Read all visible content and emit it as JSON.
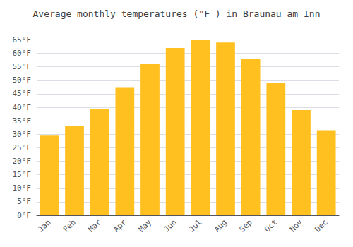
{
  "chart_data": {
    "type": "bar",
    "title": "Average monthly temperatures (°F ) in Braunau am Inn",
    "categories": [
      "Jan",
      "Feb",
      "Mar",
      "Apr",
      "May",
      "Jun",
      "Jul",
      "Aug",
      "Sep",
      "Oct",
      "Nov",
      "Dec"
    ],
    "values": [
      29.5,
      33,
      39.5,
      47.5,
      56,
      62,
      65,
      64,
      58,
      49,
      39,
      31.5
    ],
    "color": "#FFC020",
    "ylim": [
      0,
      68
    ],
    "yticks": [
      {
        "value": 0,
        "label": "0°F"
      },
      {
        "value": 5,
        "label": "5°F"
      },
      {
        "value": 10,
        "label": "10°F"
      },
      {
        "value": 15,
        "label": "15°F"
      },
      {
        "value": 20,
        "label": "20°F"
      },
      {
        "value": 25,
        "label": "25°F"
      },
      {
        "value": 30,
        "label": "30°F"
      },
      {
        "value": 35,
        "label": "35°F"
      },
      {
        "value": 40,
        "label": "40°F"
      },
      {
        "value": 45,
        "label": "45°F"
      },
      {
        "value": 50,
        "label": "50°F"
      },
      {
        "value": 55,
        "label": "55°F"
      },
      {
        "value": 60,
        "label": "60°F"
      },
      {
        "value": 65,
        "label": "65°F"
      }
    ],
    "grid": true
  }
}
